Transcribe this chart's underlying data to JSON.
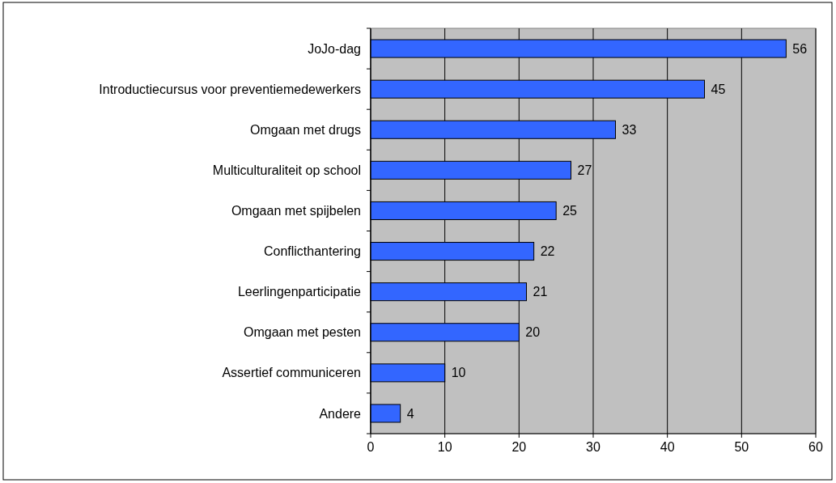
{
  "chart_data": {
    "type": "bar",
    "orientation": "horizontal",
    "categories": [
      "JoJo-dag",
      "Introductiecursus voor preventiemedewerkers",
      "Omgaan met drugs",
      "Multiculturaliteit op school",
      "Omgaan met spijbelen",
      "Conflicthantering",
      "Leerlingenparticipatie",
      "Omgaan met pesten",
      "Assertief communiceren",
      "Andere"
    ],
    "values": [
      56,
      45,
      33,
      27,
      25,
      22,
      21,
      20,
      10,
      4
    ],
    "color": "#3366ff",
    "xlim": [
      0,
      60
    ],
    "xticks": [
      0,
      10,
      20,
      30,
      40,
      50,
      60
    ],
    "grid": "x",
    "data_labels": true
  }
}
